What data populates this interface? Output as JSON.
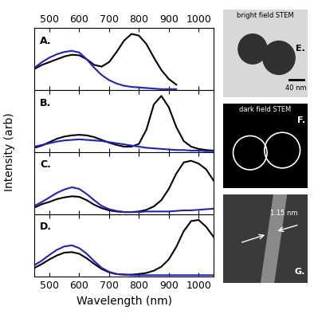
{
  "figure": {
    "xlabel": "Wavelength (nm)",
    "ylabel": "Intensity (arb)"
  },
  "chart_data": [
    {
      "type": "line",
      "title": "A.",
      "tick_labels": "x",
      "x": [
        450,
        475,
        500,
        525,
        550,
        575,
        600,
        625,
        650,
        675,
        700,
        725,
        750,
        775,
        800,
        825,
        850,
        875,
        900,
        925,
        950,
        975,
        1000,
        1025,
        1050
      ],
      "xlim": [
        450,
        1050
      ],
      "xticks": [
        500,
        600,
        700,
        800,
        900,
        1000
      ],
      "ylim": [
        0,
        1.1
      ],
      "series": [
        {
          "color": "#000000",
          "values": [
            0.38,
            0.45,
            0.5,
            0.55,
            0.6,
            0.63,
            0.62,
            0.55,
            0.45,
            0.42,
            0.5,
            0.68,
            0.88,
            1.0,
            0.97,
            0.82,
            0.58,
            0.36,
            0.2,
            0.1,
            null,
            null,
            null,
            null,
            null
          ]
        },
        {
          "color": "#1f1fd0",
          "values": [
            0.4,
            0.5,
            0.58,
            0.64,
            0.68,
            0.7,
            0.67,
            0.55,
            0.4,
            0.27,
            0.18,
            0.12,
            0.08,
            0.06,
            0.05,
            0.04,
            0.03,
            0.02,
            0.02,
            0.02,
            null,
            null,
            null,
            null,
            null
          ]
        }
      ]
    },
    {
      "type": "line",
      "title": "B.",
      "tick_labels": false,
      "x": [
        450,
        475,
        500,
        525,
        550,
        575,
        600,
        625,
        650,
        675,
        700,
        725,
        750,
        775,
        800,
        825,
        850,
        875,
        900,
        925,
        950,
        975,
        1000,
        1025,
        1050
      ],
      "xlim": [
        450,
        1050
      ],
      "xticks": [
        500,
        600,
        700,
        800,
        900,
        1000
      ],
      "ylim": [
        0,
        1.1
      ],
      "series": [
        {
          "color": "#000000",
          "values": [
            0.08,
            0.12,
            0.18,
            0.24,
            0.28,
            0.3,
            0.31,
            0.3,
            0.27,
            0.22,
            0.17,
            0.13,
            0.1,
            0.1,
            0.15,
            0.4,
            0.85,
            1.0,
            0.8,
            0.45,
            0.2,
            0.1,
            0.06,
            0.04,
            0.03
          ]
        },
        {
          "color": "#1f1fd0",
          "values": [
            0.1,
            0.13,
            0.16,
            0.19,
            0.21,
            0.22,
            0.23,
            0.22,
            0.21,
            0.2,
            0.18,
            0.16,
            0.14,
            0.12,
            0.1,
            0.08,
            0.07,
            0.06,
            0.05,
            0.04,
            0.04,
            0.03,
            0.03,
            0.02,
            0.02
          ]
        }
      ]
    },
    {
      "type": "line",
      "title": "C.",
      "tick_labels": false,
      "x": [
        450,
        475,
        500,
        525,
        550,
        575,
        600,
        625,
        650,
        675,
        700,
        725,
        750,
        775,
        800,
        825,
        850,
        875,
        900,
        925,
        950,
        975,
        1000,
        1025,
        1050
      ],
      "xlim": [
        450,
        1050
      ],
      "xticks": [
        500,
        600,
        700,
        800,
        900,
        1000
      ],
      "ylim": [
        0,
        1.1
      ],
      "series": [
        {
          "color": "#000000",
          "values": [
            0.12,
            0.18,
            0.22,
            0.27,
            0.3,
            0.32,
            0.31,
            0.25,
            0.17,
            0.11,
            0.07,
            0.05,
            0.04,
            0.04,
            0.05,
            0.08,
            0.14,
            0.25,
            0.45,
            0.72,
            0.92,
            0.95,
            0.9,
            0.8,
            0.6
          ]
        },
        {
          "color": "#1f1fd0",
          "values": [
            0.15,
            0.22,
            0.3,
            0.38,
            0.44,
            0.48,
            0.45,
            0.36,
            0.25,
            0.15,
            0.09,
            0.06,
            0.04,
            0.04,
            0.04,
            0.05,
            0.05,
            0.05,
            0.05,
            0.06,
            0.07,
            0.07,
            0.08,
            0.09,
            0.1
          ]
        }
      ]
    },
    {
      "type": "line",
      "title": "D.",
      "tick_labels": "x",
      "x": [
        450,
        475,
        500,
        525,
        550,
        575,
        600,
        625,
        650,
        675,
        700,
        725,
        750,
        775,
        800,
        825,
        850,
        875,
        900,
        925,
        950,
        975,
        1000,
        1025,
        1050
      ],
      "xlim": [
        450,
        1050
      ],
      "xticks": [
        500,
        600,
        700,
        800,
        900,
        1000
      ],
      "ylim": [
        0,
        1.1
      ],
      "series": [
        {
          "color": "#000000",
          "values": [
            0.15,
            0.22,
            0.3,
            0.37,
            0.42,
            0.43,
            0.4,
            0.32,
            0.22,
            0.13,
            0.07,
            0.04,
            0.03,
            0.03,
            0.04,
            0.06,
            0.1,
            0.17,
            0.3,
            0.52,
            0.8,
            0.98,
            1.0,
            0.88,
            0.7
          ]
        },
        {
          "color": "#1f1fd0",
          "values": [
            0.2,
            0.28,
            0.38,
            0.47,
            0.53,
            0.55,
            0.5,
            0.4,
            0.27,
            0.15,
            0.08,
            0.04,
            0.03,
            0.02,
            0.02,
            0.02,
            0.02,
            0.02,
            0.02,
            0.02,
            0.02,
            0.02,
            0.02,
            0.02,
            0.02
          ]
        }
      ]
    }
  ],
  "images": [
    {
      "label": "E.",
      "caption": "bright field STEM",
      "scale_bar": "40 nm"
    },
    {
      "label": "F.",
      "caption": "dark field STEM"
    },
    {
      "label": "G.",
      "measurement": "1.15 nm"
    }
  ]
}
